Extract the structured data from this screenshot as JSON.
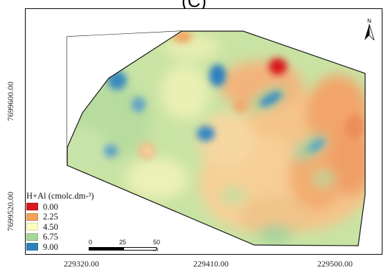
{
  "panel_label": "(C)",
  "legend": {
    "title": "H+Al (cmolc.dm-³)",
    "items": [
      {
        "label": "0.00",
        "color": "#d7191c"
      },
      {
        "label": "2.25",
        "color": "#f4a15b"
      },
      {
        "label": "4.50",
        "color": "#fefec0"
      },
      {
        "label": "6.75",
        "color": "#a6d69b"
      },
      {
        "label": "9.00",
        "color": "#2b83ba"
      }
    ]
  },
  "axes": {
    "y_ticks": [
      "7699600.00",
      "7699520.00"
    ],
    "x_ticks": [
      "229320.00",
      "229410.00",
      "229500.00"
    ]
  },
  "north_arrow": {
    "label": "N",
    "icon": "north-arrow-icon"
  },
  "scale_bar": {
    "labels": [
      "0",
      "25",
      "50 m"
    ]
  }
}
